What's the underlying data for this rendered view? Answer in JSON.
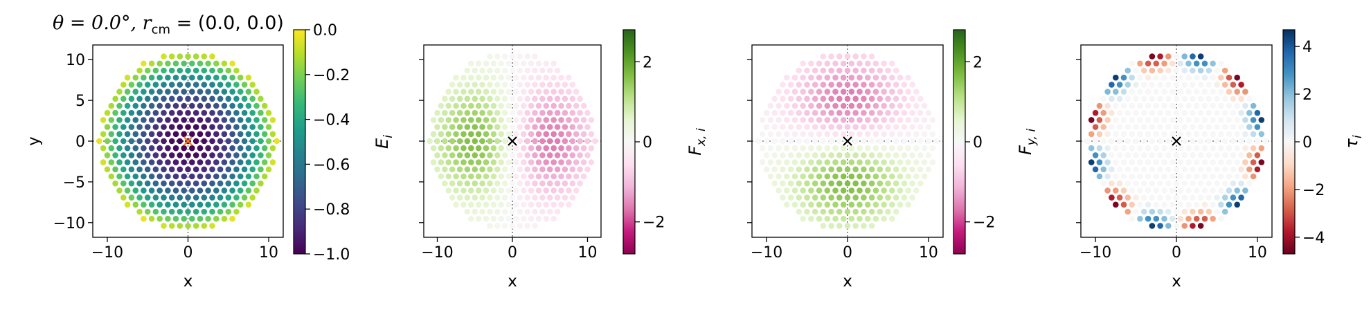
{
  "figure": {
    "title_theta": "θ = 0.0°, ",
    "title_r": "r",
    "title_sub": "cm",
    "title_value": " = (0.0, 0.0)"
  },
  "chart_data": [
    {
      "type": "scatter",
      "quantity": "E_i",
      "xlabel": "x",
      "ylabel": "y",
      "xlim": [
        -11.8,
        11.8
      ],
      "ylim": [
        -11.8,
        11.8
      ],
      "xticks": [
        -10,
        0,
        10
      ],
      "yticks": [
        -10,
        -5,
        0,
        5,
        10
      ],
      "colorbar": {
        "label": "E",
        "label_sub": "i",
        "cmap": "viridis",
        "vmin": -1.0,
        "vmax": 0.0,
        "ticks": [
          0.0,
          -0.2,
          -0.4,
          -0.6,
          -0.8,
          -1.0
        ],
        "tick_labels": [
          "0.0",
          "−0.2",
          "−0.4",
          "−0.6",
          "−0.8",
          "−1.0"
        ]
      },
      "center_marker": {
        "symbol": "x",
        "color": "#ff7f0e",
        "x": 0,
        "y": 0
      },
      "lattice": {
        "shape": "hexagonal disk",
        "spacing": 1.0,
        "radius": 11.0
      },
      "profile": "E = -1 at center rising to about 0 at the edge"
    },
    {
      "type": "scatter",
      "quantity": "F_x,i",
      "xlabel": "x",
      "ylabel": "",
      "xlim": [
        -11.8,
        11.8
      ],
      "ylim": [
        -11.8,
        11.8
      ],
      "xticks": [
        -10,
        0,
        10
      ],
      "yticks": [
        -10,
        -5,
        0,
        5,
        10
      ],
      "colorbar": {
        "label": "F",
        "label_sub": "x, i",
        "cmap": "PiYG",
        "vmin": -2.8,
        "vmax": 2.8,
        "ticks": [
          2,
          0,
          -2
        ],
        "tick_labels": [
          "2",
          "0",
          "−2"
        ]
      },
      "center_marker": {
        "symbol": "x",
        "color": "#000000",
        "x": 0,
        "y": 0
      },
      "profile": "positive (green) for x < 0, negative (pink) for x > 0, peak near |x| = 5"
    },
    {
      "type": "scatter",
      "quantity": "F_y,i",
      "xlabel": "x",
      "ylabel": "",
      "xlim": [
        -11.8,
        11.8
      ],
      "ylim": [
        -11.8,
        11.8
      ],
      "xticks": [
        -10,
        0,
        10
      ],
      "yticks": [
        -10,
        -5,
        0,
        5,
        10
      ],
      "colorbar": {
        "label": "F",
        "label_sub": "y, i",
        "cmap": "PiYG",
        "vmin": -2.8,
        "vmax": 2.8,
        "ticks": [
          2,
          0,
          -2
        ],
        "tick_labels": [
          "2",
          "0",
          "−2"
        ]
      },
      "center_marker": {
        "symbol": "x",
        "color": "#000000",
        "x": 0,
        "y": 0
      },
      "profile": "positive (green) for y < 0, negative (pink) for y > 0, peak near |y| = 5"
    },
    {
      "type": "scatter",
      "quantity": "τ_i",
      "xlabel": "x",
      "ylabel": "",
      "xlim": [
        -11.8,
        11.8
      ],
      "ylim": [
        -11.8,
        11.8
      ],
      "xticks": [
        -10,
        0,
        10
      ],
      "yticks": [
        -10,
        -5,
        0,
        5,
        10
      ],
      "colorbar": {
        "label": "τ",
        "label_sub": "i",
        "cmap": "RdBu",
        "vmin": -4.7,
        "vmax": 4.7,
        "ticks": [
          4,
          2,
          0,
          -2,
          -4
        ],
        "tick_labels": [
          "4",
          "2",
          "0",
          "−2",
          "−4"
        ]
      },
      "center_marker": {
        "symbol": "x",
        "color": "#000000",
        "x": 0,
        "y": 0
      },
      "profile": "near zero in the interior; alternating ± values at the disk rim"
    }
  ],
  "tick_labels": {
    "x": [
      "−10",
      "0",
      "10"
    ],
    "y": [
      "−10",
      "−5",
      "0",
      "5",
      "10"
    ]
  }
}
